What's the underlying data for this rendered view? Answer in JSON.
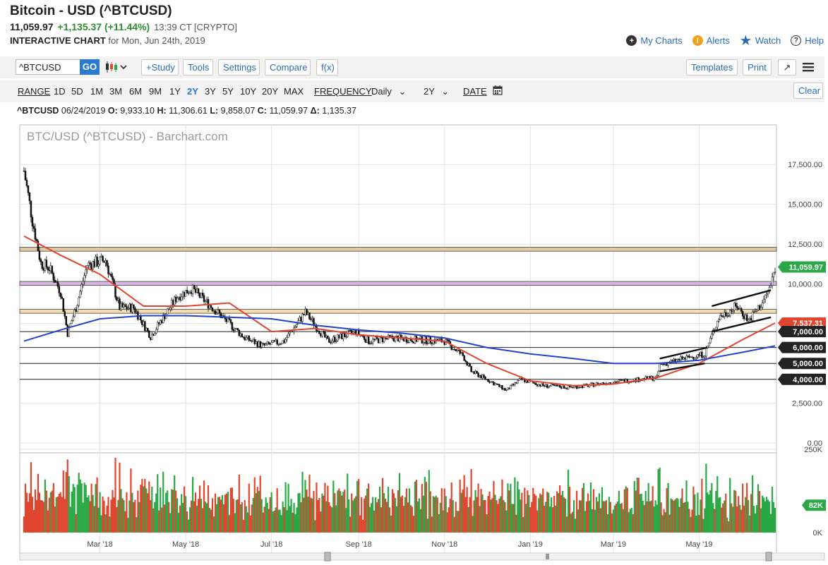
{
  "header": {
    "title": "Bitcoin - USD (^BTCUSD)",
    "last": "11,059.97",
    "change": "+1,135.37 (+11.44%)",
    "time": "13:39 CT [CRYPTO]",
    "interactive_label": "INTERACTIVE CHART",
    "interactive_date": "for Mon, Jun 24th, 2019"
  },
  "actions": {
    "my_charts": "My Charts",
    "alerts": "Alerts",
    "watch": "Watch",
    "help": "Help"
  },
  "toolbar": {
    "symbol_value": "^BTCUSD",
    "go": "GO",
    "study": "+Study",
    "tools": "Tools",
    "settings": "Settings",
    "compare": "Compare",
    "fx": "f(x)",
    "templates": "Templates",
    "print": "Print",
    "expand_icon": "expand-icon",
    "menu_icon": "hamburger-menu-icon"
  },
  "range_bar": {
    "range_label": "RANGE",
    "ranges": [
      "1D",
      "5D",
      "1M",
      "3M",
      "6M",
      "9M",
      "1Y",
      "2Y",
      "3Y",
      "5Y",
      "10Y",
      "20Y",
      "MAX"
    ],
    "selected": "2Y",
    "frequency_label": "FREQUENCY",
    "frequency_value": "Daily",
    "period_value": "2Y",
    "date_label": "DATE",
    "clear": "Clear"
  },
  "ohlc": {
    "symbol": "^BTCUSD",
    "date": "06/24/2019",
    "open": "9,933.10",
    "high": "11,306.61",
    "low": "9,858.07",
    "close": "11,059.97",
    "delta": "1,135.37"
  },
  "chart_data": {
    "type": "candlestick",
    "watermark": "BTC/USD (^BTCUSD) - Barchart.com",
    "x_tick_labels": [
      "Mar '18",
      "May '18",
      "Jul '18",
      "Sep '18",
      "Nov '18",
      "Jan '19",
      "Mar '19",
      "May '19"
    ],
    "y_tick_labels": [
      "17,500.00",
      "15,000.00",
      "12,500.00",
      "10,000.00",
      "7,500.00",
      "5,000.00",
      "2,500.00",
      "0.00"
    ],
    "ylim": [
      0,
      18500
    ],
    "volume_tick_labels": [
      "250K",
      "0K"
    ],
    "volume_ylim": [
      0,
      330000
    ],
    "price_badges": [
      {
        "label": "11,059.97",
        "value": 11059.97,
        "color": "#2aa845"
      },
      {
        "label": "7,537.31",
        "value": 7537.31,
        "color": "#e0462f"
      },
      {
        "label": "7,000.00",
        "value": 7000,
        "color": "#222222"
      },
      {
        "label": "6,000.00",
        "value": 6000,
        "color": "#222222"
      },
      {
        "label": "5,000.00",
        "value": 5000,
        "color": "#222222"
      },
      {
        "label": "4,000.00",
        "value": 4000,
        "color": "#222222"
      }
    ],
    "volume_badge": {
      "label": "82K",
      "value": 82000,
      "color": "#2aa845"
    },
    "horizontal_levels": [
      4000,
      5000,
      6000,
      7000
    ],
    "zones": [
      {
        "from": 12050,
        "to": 12300,
        "color": "#e2c9a4"
      },
      {
        "from": 9900,
        "to": 10150,
        "color": "#d8b4e2"
      },
      {
        "from": 8150,
        "to": 8400,
        "color": "#f2dcb0"
      }
    ],
    "price_path": [
      [
        "2018-01-06",
        17100
      ],
      [
        "2018-01-12",
        14000
      ],
      [
        "2018-01-18",
        11300
      ],
      [
        "2018-01-24",
        11000
      ],
      [
        "2018-02-01",
        9500
      ],
      [
        "2018-02-06",
        6900
      ],
      [
        "2018-02-12",
        8500
      ],
      [
        "2018-02-20",
        11200
      ],
      [
        "2018-03-05",
        11500
      ],
      [
        "2018-03-15",
        8500
      ],
      [
        "2018-03-25",
        8500
      ],
      [
        "2018-04-06",
        6700
      ],
      [
        "2018-04-15",
        7900
      ],
      [
        "2018-04-25",
        9200
      ],
      [
        "2018-05-05",
        9700
      ],
      [
        "2018-05-20",
        8500
      ],
      [
        "2018-06-01",
        7500
      ],
      [
        "2018-06-12",
        6600
      ],
      [
        "2018-06-25",
        6100
      ],
      [
        "2018-07-10",
        6400
      ],
      [
        "2018-07-25",
        8200
      ],
      [
        "2018-08-10",
        6400
      ],
      [
        "2018-08-30",
        7000
      ],
      [
        "2018-09-08",
        6400
      ],
      [
        "2018-09-25",
        6600
      ],
      [
        "2018-10-10",
        6500
      ],
      [
        "2018-11-01",
        6400
      ],
      [
        "2018-11-14",
        5500
      ],
      [
        "2018-11-20",
        4500
      ],
      [
        "2018-12-01",
        4000
      ],
      [
        "2018-12-15",
        3300
      ],
      [
        "2018-12-25",
        4000
      ],
      [
        "2019-01-10",
        3600
      ],
      [
        "2019-01-28",
        3500
      ],
      [
        "2019-02-10",
        3600
      ],
      [
        "2019-02-25",
        3800
      ],
      [
        "2019-03-20",
        4000
      ],
      [
        "2019-04-01",
        4100
      ],
      [
        "2019-04-03",
        4900
      ],
      [
        "2019-04-20",
        5300
      ],
      [
        "2019-05-05",
        5600
      ],
      [
        "2019-05-15",
        7900
      ],
      [
        "2019-05-28",
        8600
      ],
      [
        "2019-06-05",
        7700
      ],
      [
        "2019-06-15",
        8800
      ],
      [
        "2019-06-21",
        9900
      ],
      [
        "2019-06-24",
        11060
      ]
    ],
    "series": [
      {
        "name": "",
        "color": "#e0462f",
        "values": [
          [
            "2018-01-06",
            13000
          ],
          [
            "2018-02-01",
            11800
          ],
          [
            "2018-03-01",
            10600
          ],
          [
            "2018-04-01",
            8600
          ],
          [
            "2018-05-01",
            8600
          ],
          [
            "2018-06-01",
            8800
          ],
          [
            "2018-07-01",
            7000
          ],
          [
            "2018-08-01",
            7200
          ],
          [
            "2018-09-01",
            6800
          ],
          [
            "2018-10-01",
            6600
          ],
          [
            "2018-11-01",
            6400
          ],
          [
            "2018-12-01",
            5000
          ],
          [
            "2019-01-01",
            3900
          ],
          [
            "2019-02-01",
            3600
          ],
          [
            "2019-03-01",
            3700
          ],
          [
            "2019-04-01",
            4100
          ],
          [
            "2019-05-01",
            5000
          ],
          [
            "2019-06-01",
            6500
          ],
          [
            "2019-06-24",
            7537
          ]
        ]
      },
      {
        "name": "",
        "color": "#2244cc",
        "values": [
          [
            "2018-01-06",
            6400
          ],
          [
            "2018-02-01",
            7100
          ],
          [
            "2018-03-01",
            7800
          ],
          [
            "2018-04-01",
            8000
          ],
          [
            "2018-05-01",
            8000
          ],
          [
            "2018-06-01",
            7900
          ],
          [
            "2018-07-01",
            7800
          ],
          [
            "2018-08-01",
            7400
          ],
          [
            "2018-09-01",
            7100
          ],
          [
            "2018-10-01",
            6900
          ],
          [
            "2018-11-01",
            6600
          ],
          [
            "2018-12-01",
            6000
          ],
          [
            "2019-01-01",
            5600
          ],
          [
            "2019-02-01",
            5300
          ],
          [
            "2019-03-01",
            5000
          ],
          [
            "2019-04-01",
            5000
          ],
          [
            "2019-05-01",
            5200
          ],
          [
            "2019-06-01",
            5700
          ],
          [
            "2019-06-24",
            6100
          ]
        ]
      }
    ],
    "trend_lines": [
      {
        "from": [
          "2019-04-03",
          4500
        ],
        "to": [
          "2019-05-05",
          5000
        ]
      },
      {
        "from": [
          "2019-04-03",
          5300
        ],
        "to": [
          "2019-05-07",
          6000
        ]
      },
      {
        "from": [
          "2019-05-10",
          7000
        ],
        "to": [
          "2019-06-21",
          7900
        ]
      },
      {
        "from": [
          "2019-05-10",
          8600
        ],
        "to": [
          "2019-06-21",
          9600
        ]
      }
    ]
  }
}
